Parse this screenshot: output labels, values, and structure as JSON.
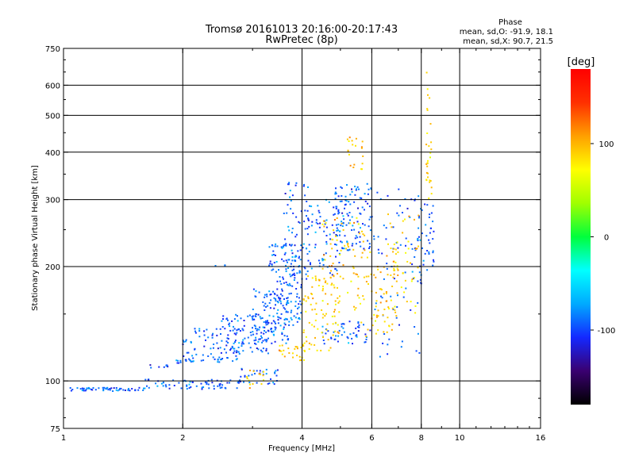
{
  "chart_data": {
    "type": "scatter",
    "title": "Tromsø 20161013 20:16:00-20:17:43",
    "subtitle": "RwPretec (8p)",
    "xlabel": "Frequency [MHz]",
    "ylabel": "Stationary phase Virtual Height [km]",
    "x_scale": "log",
    "y_scale": "log",
    "xlim": [
      1,
      16
    ],
    "ylim": [
      75,
      750
    ],
    "x_ticks": [
      1,
      2,
      4,
      6,
      8,
      10,
      16
    ],
    "x_tick_labels": [
      "1",
      "2",
      "4",
      "6",
      "8",
      "10",
      "16"
    ],
    "y_ticks": [
      75,
      100,
      200,
      300,
      400,
      500,
      600,
      750
    ],
    "y_tick_labels": [
      "75",
      "100",
      "200",
      "300",
      "400",
      "500",
      "600",
      "750"
    ],
    "grid": true,
    "legend": {
      "title": "Phase",
      "line1": "mean, sd,O: -91.9, 18.1",
      "line2": "mean, sd,X:  90.7, 21.5",
      "placement": "top-right"
    },
    "colorbar": {
      "label": "[deg]",
      "range": [
        -180,
        180
      ],
      "ticks": [
        100,
        0,
        -100
      ],
      "tick_labels": [
        "100",
        "0",
        "-100"
      ],
      "colors": [
        "#000000",
        "#3a0070",
        "#1428ff",
        "#00aaff",
        "#00ffff",
        "#00ff3c",
        "#a0ff00",
        "#ffff00",
        "#ffa000",
        "#ff3000",
        "#ff0000"
      ]
    },
    "series": [
      {
        "name": "O",
        "phase_mean": -91.9,
        "bands": [
          {
            "f": [
              1.0,
              1.6
            ],
            "h": [
              94,
              96
            ],
            "n": 55
          },
          {
            "f": [
              1.6,
              2.8
            ],
            "h": [
              95,
              101
            ],
            "n": 70
          },
          {
            "f": [
              2.8,
              3.5
            ],
            "h": [
              98,
              108
            ],
            "n": 30
          },
          {
            "f": [
              1.65,
              1.85
            ],
            "h": [
              108,
              112
            ],
            "n": 8
          },
          {
            "f": [
              1.9,
              2.1
            ],
            "h": [
              111,
              114
            ],
            "n": 8
          },
          {
            "f": [
              2.0,
              2.8
            ],
            "h": [
              112,
              138
            ],
            "n": 90
          },
          {
            "f": [
              2.5,
              3.3
            ],
            "h": [
              118,
              150
            ],
            "n": 90
          },
          {
            "f": [
              3.0,
              3.7
            ],
            "h": [
              125,
              175
            ],
            "n": 110
          },
          {
            "f": [
              3.3,
              4.0
            ],
            "h": [
              140,
              230
            ],
            "n": 130
          },
          {
            "f": [
              3.6,
              4.2
            ],
            "h": [
              180,
              340
            ],
            "n": 80
          },
          {
            "f": [
              4.2,
              5.0
            ],
            "h": [
              190,
              300
            ],
            "n": 60
          },
          {
            "f": [
              4.8,
              6.0
            ],
            "h": [
              220,
              330
            ],
            "n": 110
          },
          {
            "f": [
              4.5,
              6.0
            ],
            "h": [
              125,
              145
            ],
            "n": 50
          },
          {
            "f": [
              6.0,
              8.0
            ],
            "h": [
              115,
              320
            ],
            "n": 80
          },
          {
            "f": [
              7.8,
              8.6
            ],
            "h": [
              180,
              300
            ],
            "n": 40
          },
          {
            "f": [
              2.4,
              2.6
            ],
            "h": [
              200,
              204
            ],
            "n": 3
          }
        ]
      },
      {
        "name": "X",
        "phase_mean": 90.7,
        "bands": [
          {
            "f": [
              2.9,
              3.3
            ],
            "h": [
              95,
              108
            ],
            "n": 14
          },
          {
            "f": [
              3.5,
              4.1
            ],
            "h": [
              113,
              125
            ],
            "n": 30
          },
          {
            "f": [
              4.0,
              5.0
            ],
            "h": [
              120,
              190
            ],
            "n": 70
          },
          {
            "f": [
              4.5,
              5.8
            ],
            "h": [
              140,
              270
            ],
            "n": 90
          },
          {
            "f": [
              5.2,
              5.7
            ],
            "h": [
              360,
              440
            ],
            "n": 20
          },
          {
            "f": [
              5.8,
              7.0
            ],
            "h": [
              130,
              220
            ],
            "n": 60
          },
          {
            "f": [
              6.5,
              8.0
            ],
            "h": [
              150,
              280
            ],
            "n": 55
          },
          {
            "f": [
              8.2,
              8.5
            ],
            "h": [
              300,
              650
            ],
            "n": 30
          }
        ]
      }
    ]
  }
}
